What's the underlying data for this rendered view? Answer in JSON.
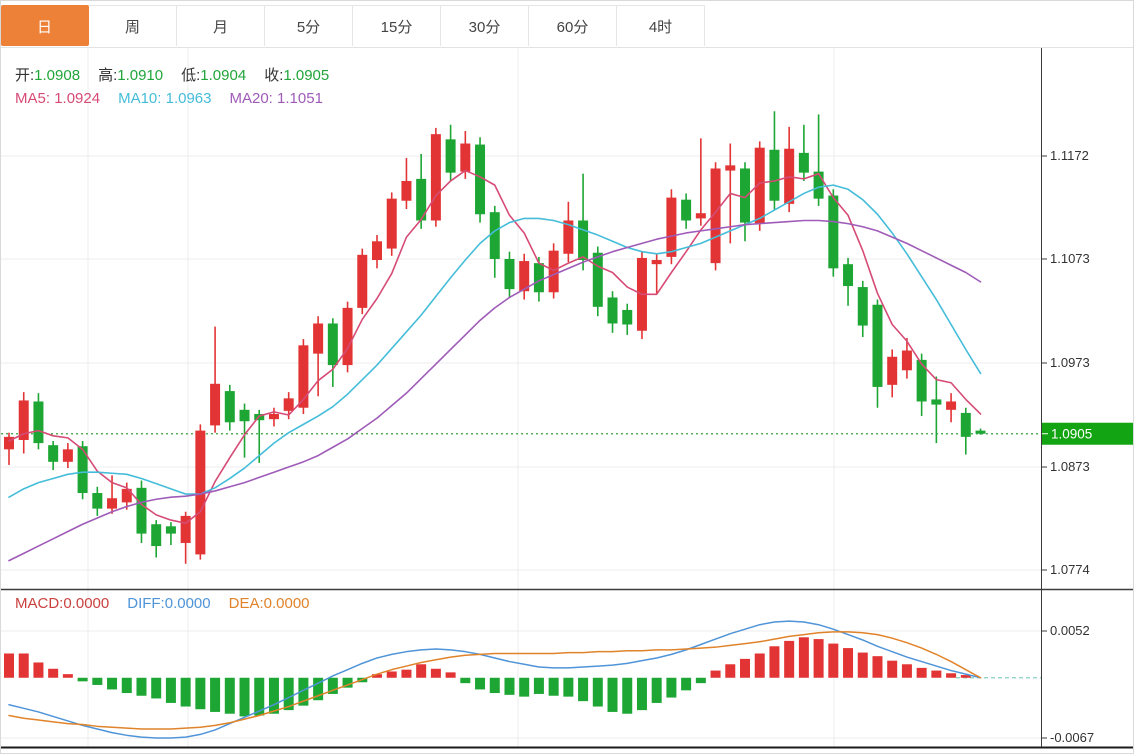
{
  "tabs": [
    {
      "label": "日",
      "active": true
    },
    {
      "label": "周",
      "active": false
    },
    {
      "label": "月",
      "active": false
    },
    {
      "label": "5分",
      "active": false
    },
    {
      "label": "15分",
      "active": false
    },
    {
      "label": "30分",
      "active": false
    },
    {
      "label": "60分",
      "active": false
    },
    {
      "label": "4时",
      "active": false
    }
  ],
  "legend": {
    "open": {
      "label": "开:",
      "value": "1.0908"
    },
    "high": {
      "label": "高:",
      "value": "1.0910"
    },
    "low": {
      "label": "低:",
      "value": "1.0904"
    },
    "close": {
      "label": "收:",
      "value": "1.0905"
    },
    "ma5": {
      "label": "MA5:",
      "value": "1.0924"
    },
    "ma10": {
      "label": "MA10:",
      "value": "1.0963"
    },
    "ma20": {
      "label": "MA20:",
      "value": "1.1051"
    }
  },
  "macd_legend": {
    "macd": {
      "label": "MACD:",
      "value": "0.0000"
    },
    "diff": {
      "label": "DIFF:",
      "value": "0.0000"
    },
    "dea": {
      "label": "DEA:",
      "value": "0.0000"
    }
  },
  "colors": {
    "up_candle": "#e23434",
    "down_candle": "#1da634",
    "active_tab": "#ed8138",
    "ma5_line": "#d64b76",
    "ma10_line": "#45bdd9",
    "ma20_line": "#9f5bb8",
    "diff_line": "#4f94d8",
    "dea_line": "#e0832a",
    "current_price_line": "#3aa33a",
    "current_price_badge": "#12a412",
    "grid": "#ececec",
    "axis": "#3b3b3b",
    "zero_dash": "#86cfc3"
  },
  "chart_data": {
    "type": "candlestick_with_macd",
    "title": "",
    "timeframe_selected": "日",
    "price_axis_ticks": [
      1.1172,
      1.1073,
      1.0973,
      1.0873,
      1.0774
    ],
    "current_price": 1.0905,
    "macd_axis_ticks": [
      0.0052,
      -0.0067
    ],
    "legend_values": {
      "open": 1.0908,
      "high": 1.091,
      "low": 1.0904,
      "close": 1.0905,
      "ma5": 1.0924,
      "ma10": 1.0963,
      "ma20": 1.1051,
      "macd": 0.0,
      "diff": 0.0,
      "dea": 0.0
    },
    "candles_ohlc_format": [
      "open",
      "high",
      "low",
      "close"
    ],
    "candles": [
      [
        1.089,
        1.0906,
        1.0875,
        1.0902
      ],
      [
        1.0899,
        1.0945,
        1.0886,
        1.0937
      ],
      [
        1.0936,
        1.0944,
        1.089,
        1.0896
      ],
      [
        1.0894,
        1.0898,
        1.087,
        1.0878
      ],
      [
        1.0878,
        1.0896,
        1.0872,
        1.089
      ],
      [
        1.0893,
        1.0898,
        1.0842,
        1.0848
      ],
      [
        1.0848,
        1.0854,
        1.0826,
        1.0833
      ],
      [
        1.0833,
        1.0865,
        1.0828,
        1.0843
      ],
      [
        1.0839,
        1.0858,
        1.0832,
        1.0852
      ],
      [
        1.0853,
        1.086,
        1.08,
        1.0809
      ],
      [
        1.0818,
        1.0822,
        1.0786,
        1.0797
      ],
      [
        1.0816,
        1.082,
        1.0798,
        1.0809
      ],
      [
        1.08,
        1.083,
        1.078,
        1.0826
      ],
      [
        1.0789,
        1.0914,
        1.0784,
        1.0908
      ],
      [
        1.0913,
        1.1008,
        1.0906,
        1.0953
      ],
      [
        1.0946,
        1.0952,
        1.0908,
        1.0916
      ],
      [
        1.0928,
        1.0934,
        1.0882,
        1.0917
      ],
      [
        1.0924,
        1.0928,
        1.0877,
        1.0918
      ],
      [
        1.0919,
        1.093,
        1.0912,
        1.0924
      ],
      [
        1.0927,
        1.0945,
        1.0919,
        1.0939
      ],
      [
        1.093,
        1.0996,
        1.0924,
        1.099
      ],
      [
        1.0982,
        1.1018,
        1.0941,
        1.1011
      ],
      [
        1.1011,
        1.1016,
        1.095,
        1.0971
      ],
      [
        1.0971,
        1.1032,
        1.0964,
        1.1026
      ],
      [
        1.1026,
        1.1083,
        1.102,
        1.1077
      ],
      [
        1.1072,
        1.1096,
        1.1064,
        1.109
      ],
      [
        1.1083,
        1.1137,
        1.1076,
        1.1131
      ],
      [
        1.1129,
        1.117,
        1.1121,
        1.1148
      ],
      [
        1.115,
        1.1174,
        1.1102,
        1.111
      ],
      [
        1.111,
        1.1199,
        1.1104,
        1.1193
      ],
      [
        1.1188,
        1.1202,
        1.1148,
        1.1156
      ],
      [
        1.1157,
        1.1196,
        1.115,
        1.1184
      ],
      [
        1.1183,
        1.119,
        1.1108,
        1.1116
      ],
      [
        1.1118,
        1.1124,
        1.1055,
        1.1073
      ],
      [
        1.1073,
        1.108,
        1.1036,
        1.1044
      ],
      [
        1.1042,
        1.1078,
        1.1034,
        1.1071
      ],
      [
        1.1069,
        1.1075,
        1.1032,
        1.1041
      ],
      [
        1.1041,
        1.1088,
        1.1035,
        1.1081
      ],
      [
        1.1078,
        1.1128,
        1.107,
        1.111
      ],
      [
        1.111,
        1.1155,
        1.1062,
        1.1072
      ],
      [
        1.1079,
        1.1085,
        1.1018,
        1.1027
      ],
      [
        1.1036,
        1.1042,
        1.1002,
        1.1011
      ],
      [
        1.1024,
        1.103,
        1.1,
        1.101
      ],
      [
        1.1004,
        1.108,
        1.0996,
        1.1074
      ],
      [
        1.1068,
        1.1078,
        1.104,
        1.1072
      ],
      [
        1.1075,
        1.114,
        1.1068,
        1.1132
      ],
      [
        1.113,
        1.1136,
        1.1102,
        1.111
      ],
      [
        1.1112,
        1.1189,
        1.1105,
        1.1117
      ],
      [
        1.1069,
        1.1166,
        1.1062,
        1.116
      ],
      [
        1.1158,
        1.1184,
        1.1088,
        1.1163
      ],
      [
        1.116,
        1.1166,
        1.109,
        1.1108
      ],
      [
        1.1107,
        1.1186,
        1.11,
        1.118
      ],
      [
        1.1178,
        1.1215,
        1.112,
        1.1129
      ],
      [
        1.1126,
        1.12,
        1.1118,
        1.1179
      ],
      [
        1.1175,
        1.1202,
        1.1148,
        1.1156
      ],
      [
        1.1157,
        1.1212,
        1.1124,
        1.1131
      ],
      [
        1.1134,
        1.114,
        1.1056,
        1.1064
      ],
      [
        1.1068,
        1.1074,
        1.1028,
        1.1047
      ],
      [
        1.1046,
        1.1052,
        1.0998,
        1.1009
      ],
      [
        1.1029,
        1.1034,
        1.093,
        1.095
      ],
      [
        1.0952,
        1.0986,
        1.094,
        1.0979
      ],
      [
        1.0966,
        1.0997,
        1.0958,
        1.0985
      ],
      [
        1.0976,
        1.0982,
        1.0922,
        1.0936
      ],
      [
        1.0938,
        1.096,
        1.0896,
        1.0933
      ],
      [
        1.0928,
        1.0944,
        1.0916,
        1.0936
      ],
      [
        1.0925,
        1.093,
        1.0885,
        1.0902
      ],
      [
        1.0908,
        1.091,
        1.0904,
        1.0905
      ]
    ],
    "ma5": [
      1.0898,
      1.0905,
      1.0908,
      1.0903,
      1.0901,
      1.089,
      1.0869,
      1.0858,
      1.0853,
      1.0837,
      1.0827,
      1.0822,
      1.0819,
      1.083,
      1.0859,
      1.0882,
      1.0904,
      1.0922,
      1.0926,
      1.0923,
      1.0938,
      1.0956,
      1.0967,
      1.0987,
      1.1015,
      1.1035,
      1.1059,
      1.1094,
      1.1111,
      1.1134,
      1.1148,
      1.1158,
      1.1152,
      1.1144,
      1.1115,
      1.1098,
      1.1069,
      1.1062,
      1.1069,
      1.1075,
      1.1066,
      1.106,
      1.1046,
      1.1039,
      1.1039,
      1.106,
      1.108,
      1.1101,
      1.1118,
      1.1136,
      1.1132,
      1.1146,
      1.1148,
      1.1152,
      1.115,
      1.1155,
      1.1132,
      1.1115,
      1.1081,
      1.104,
      1.101,
      1.0994,
      1.0972,
      1.0957,
      1.0954,
      1.0938,
      1.0924
    ],
    "ma10": [
      1.0844,
      1.0852,
      1.0858,
      1.0862,
      1.0866,
      1.0868,
      1.0868,
      1.0867,
      1.0866,
      1.0862,
      1.0857,
      1.0852,
      1.0847,
      1.0847,
      1.0853,
      1.0862,
      1.0872,
      1.0884,
      1.0896,
      1.0906,
      1.0914,
      1.0922,
      1.0931,
      1.0943,
      1.0957,
      1.0971,
      1.0987,
      1.1003,
      1.1019,
      1.1037,
      1.1055,
      1.1072,
      1.1088,
      1.11,
      1.1108,
      1.1112,
      1.1112,
      1.111,
      1.1106,
      1.1101,
      1.1096,
      1.109,
      1.1084,
      1.108,
      1.1078,
      1.108,
      1.1084,
      1.1088,
      1.1094,
      1.11,
      1.1106,
      1.1112,
      1.112,
      1.1128,
      1.1136,
      1.1142,
      1.1144,
      1.114,
      1.113,
      1.1116,
      1.1098,
      1.1078,
      1.1056,
      1.1034,
      1.101,
      1.0986,
      1.0963
    ],
    "ma20": [
      1.0783,
      1.079,
      1.0797,
      1.0804,
      1.0811,
      1.0818,
      1.0824,
      1.083,
      1.0835,
      1.0839,
      1.0842,
      1.0844,
      1.0845,
      1.0847,
      1.085,
      1.0854,
      1.0858,
      1.0863,
      1.0868,
      1.0873,
      1.0878,
      1.0884,
      1.0892,
      1.09,
      1.091,
      1.092,
      1.0932,
      1.0944,
      1.0958,
      1.0972,
      1.0986,
      1.1,
      1.1014,
      1.1026,
      1.1036,
      1.1044,
      1.1052,
      1.1058,
      1.1064,
      1.107,
      1.1075,
      1.108,
      1.1084,
      1.1088,
      1.1092,
      1.1095,
      1.1098,
      1.11,
      1.1102,
      1.1104,
      1.1106,
      1.1107,
      1.1108,
      1.1109,
      1.111,
      1.111,
      1.1109,
      1.1107,
      1.1104,
      1.11,
      1.1094,
      1.1088,
      1.1081,
      1.1074,
      1.1067,
      1.106,
      1.1051
    ],
    "macd_hist": [
      0.0027,
      0.0027,
      0.0017,
      0.001,
      0.0004,
      -0.0004,
      -0.0008,
      -0.0013,
      -0.0017,
      -0.002,
      -0.0023,
      -0.0028,
      -0.0032,
      -0.0035,
      -0.0038,
      -0.004,
      -0.0043,
      -0.0042,
      -0.004,
      -0.0036,
      -0.0031,
      -0.0025,
      -0.0018,
      -0.0011,
      -0.0005,
      0.0004,
      0.0007,
      0.0009,
      0.0015,
      0.001,
      0.0006,
      -0.0006,
      -0.0013,
      -0.0017,
      -0.0019,
      -0.0021,
      -0.0018,
      -0.002,
      -0.0021,
      -0.0026,
      -0.0032,
      -0.0038,
      -0.004,
      -0.0036,
      -0.0028,
      -0.0022,
      -0.0014,
      -0.0006,
      0.0008,
      0.0015,
      0.0021,
      0.0027,
      0.0035,
      0.0041,
      0.0045,
      0.0043,
      0.0038,
      0.0033,
      0.0028,
      0.0024,
      0.0019,
      0.0015,
      0.0011,
      0.0008,
      0.0005,
      0.0003,
      0.0
    ],
    "diff": [
      -0.003,
      -0.0034,
      -0.0038,
      -0.0043,
      -0.0048,
      -0.0053,
      -0.0057,
      -0.0061,
      -0.0064,
      -0.0066,
      -0.0067,
      -0.0067,
      -0.0066,
      -0.0063,
      -0.0058,
      -0.0051,
      -0.0044,
      -0.0037,
      -0.003,
      -0.0022,
      -0.0014,
      -0.0006,
      0.0002,
      0.0009,
      0.0016,
      0.0022,
      0.0026,
      0.0029,
      0.0031,
      0.0032,
      0.0031,
      0.0029,
      0.0026,
      0.0022,
      0.0018,
      0.0015,
      0.0012,
      0.0011,
      0.0011,
      0.0012,
      0.0013,
      0.0014,
      0.0016,
      0.0019,
      0.0022,
      0.0026,
      0.0031,
      0.0037,
      0.0043,
      0.0049,
      0.0054,
      0.0059,
      0.0062,
      0.0063,
      0.0062,
      0.0059,
      0.0054,
      0.0048,
      0.0042,
      0.0035,
      0.0029,
      0.0023,
      0.0018,
      0.0013,
      0.0008,
      0.0004,
      0.0
    ],
    "dea": [
      -0.0042,
      -0.0045,
      -0.0047,
      -0.0049,
      -0.0051,
      -0.0052,
      -0.0054,
      -0.0055,
      -0.0056,
      -0.0057,
      -0.0057,
      -0.0057,
      -0.0056,
      -0.0055,
      -0.0053,
      -0.005,
      -0.0046,
      -0.0042,
      -0.0037,
      -0.0032,
      -0.0026,
      -0.002,
      -0.0014,
      -0.0008,
      -0.0002,
      0.0004,
      0.0009,
      0.0013,
      0.0017,
      0.002,
      0.0023,
      0.0025,
      0.0026,
      0.0027,
      0.0027,
      0.0027,
      0.0027,
      0.0027,
      0.0028,
      0.0028,
      0.0029,
      0.0029,
      0.003,
      0.003,
      0.0031,
      0.0031,
      0.0032,
      0.0033,
      0.0034,
      0.0036,
      0.0038,
      0.004,
      0.0043,
      0.0046,
      0.0048,
      0.005,
      0.0051,
      0.0051,
      0.005,
      0.0048,
      0.0044,
      0.0039,
      0.0033,
      0.0026,
      0.0018,
      0.0009,
      0.0
    ],
    "layout": {
      "grid": true,
      "legend_position": "top-left",
      "vertical_gridlines_x": [
        87,
        187,
        517,
        833
      ],
      "up_color_convention": "red-up-green-down"
    }
  }
}
